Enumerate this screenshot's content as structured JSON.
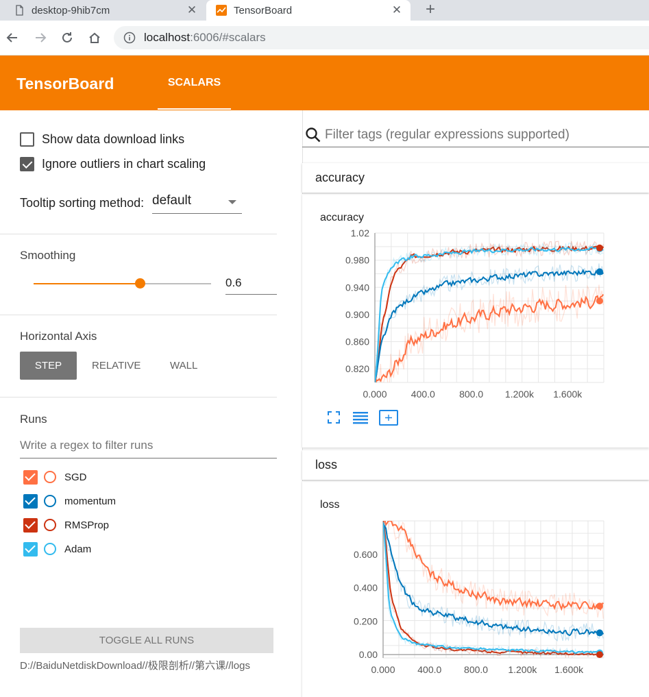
{
  "browser": {
    "tabs": [
      {
        "title": "desktop-9hib7cm",
        "active": false
      },
      {
        "title": "TensorBoard",
        "active": true
      }
    ],
    "url_host": "localhost",
    "url_rest": ":6006/#scalars"
  },
  "header": {
    "logo": "TensorBoard",
    "tab_scalars": "SCALARS"
  },
  "sidebar": {
    "show_download_links": {
      "label": "Show data download links",
      "checked": false
    },
    "ignore_outliers": {
      "label": "Ignore outliers in chart scaling",
      "checked": true
    },
    "tooltip_label": "Tooltip sorting method:",
    "tooltip_value": "default",
    "smoothing_title": "Smoothing",
    "smoothing_value": "0.6",
    "smoothing_fraction": 0.6,
    "horizontal_axis_title": "Horizontal Axis",
    "axis_step": "STEP",
    "axis_relative": "RELATIVE",
    "axis_wall": "WALL",
    "runs_title": "Runs",
    "runs_filter_placeholder": "Write a regex to filter runs",
    "runs": [
      {
        "name": "SGD",
        "color": "#ff7043",
        "checked": true
      },
      {
        "name": "momentum",
        "color": "#0077bb",
        "checked": true
      },
      {
        "name": "RMSProp",
        "color": "#cc3311",
        "checked": true
      },
      {
        "name": "Adam",
        "color": "#33bbee",
        "checked": true
      }
    ],
    "toggle_all": "TOGGLE ALL RUNS",
    "logdir": "D://BaiduNetdiskDownload//极限剖析//第六课//logs"
  },
  "main": {
    "filter_placeholder": "Filter tags (regular expressions supported)",
    "cards": [
      {
        "header": "accuracy",
        "chart_title": "accuracy"
      },
      {
        "header": "loss",
        "chart_title": "loss"
      }
    ]
  },
  "chart_data": [
    {
      "type": "line",
      "title": "accuracy",
      "x_tick_labels": [
        "0.000",
        "400.0",
        "800.0",
        "1.200k",
        "1.600k"
      ],
      "y_tick_labels": [
        "1.02",
        "0.980",
        "0.940",
        "0.900",
        "0.860",
        "0.820"
      ],
      "xlim": [
        0,
        1900
      ],
      "ylim": [
        0.8,
        1.02
      ],
      "series": [
        {
          "name": "Adam",
          "color": "#33bbee",
          "x": [
            0,
            50,
            150,
            300,
            600,
            1000,
            1400,
            1900
          ],
          "y": [
            0.8,
            0.94,
            0.975,
            0.985,
            0.99,
            0.995,
            0.996,
            0.997
          ]
        },
        {
          "name": "RMSProp",
          "color": "#cc3311",
          "x": [
            0,
            50,
            150,
            300,
            600,
            1000,
            1400,
            1900
          ],
          "y": [
            0.8,
            0.88,
            0.96,
            0.985,
            0.992,
            0.995,
            0.997,
            0.998
          ]
        },
        {
          "name": "momentum",
          "color": "#0077bb",
          "x": [
            0,
            50,
            150,
            300,
            600,
            1000,
            1400,
            1900
          ],
          "y": [
            0.8,
            0.86,
            0.905,
            0.925,
            0.945,
            0.955,
            0.96,
            0.963
          ]
        },
        {
          "name": "SGD",
          "color": "#ff7043",
          "x": [
            0,
            100,
            200,
            300,
            600,
            1000,
            1400,
            1900
          ],
          "y": [
            0.8,
            0.81,
            0.835,
            0.86,
            0.885,
            0.905,
            0.915,
            0.92
          ]
        }
      ]
    },
    {
      "type": "line",
      "title": "loss",
      "x_tick_labels": [
        "0.000",
        "400.0",
        "800.0",
        "1.200k",
        "1.600k"
      ],
      "y_tick_labels": [
        "0.600",
        "0.400",
        "0.200",
        "0.00"
      ],
      "xlim": [
        0,
        1900
      ],
      "ylim": [
        -0.02,
        0.8
      ],
      "series": [
        {
          "name": "Adam",
          "color": "#33bbee",
          "x": [
            0,
            50,
            150,
            300,
            600,
            1000,
            1400,
            1900
          ],
          "y": [
            0.8,
            0.25,
            0.1,
            0.06,
            0.04,
            0.03,
            0.02,
            0.01
          ]
        },
        {
          "name": "RMSProp",
          "color": "#cc3311",
          "x": [
            0,
            60,
            150,
            300,
            600,
            1000,
            1400,
            1900
          ],
          "y": [
            0.8,
            0.35,
            0.15,
            0.06,
            0.03,
            0.015,
            0.01,
            0.0
          ]
        },
        {
          "name": "momentum",
          "color": "#0077bb",
          "x": [
            0,
            100,
            200,
            300,
            600,
            1000,
            1400,
            1900
          ],
          "y": [
            0.8,
            0.5,
            0.35,
            0.28,
            0.22,
            0.17,
            0.14,
            0.13
          ]
        },
        {
          "name": "SGD",
          "color": "#ff7043",
          "x": [
            0,
            150,
            300,
            400,
            700,
            1000,
            1400,
            1900
          ],
          "y": [
            0.8,
            0.75,
            0.58,
            0.48,
            0.38,
            0.32,
            0.3,
            0.29
          ]
        }
      ]
    }
  ]
}
